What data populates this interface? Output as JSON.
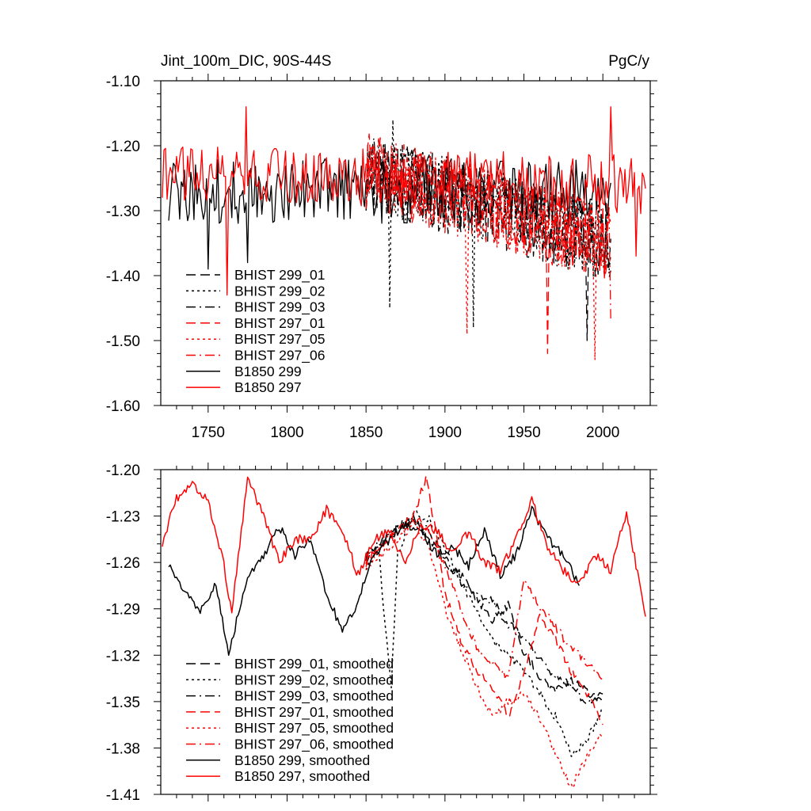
{
  "chart_data": [
    {
      "type": "line",
      "title": "Jint_100m_DIC, 90S-44S",
      "units": "PgC/y",
      "xlabel": "",
      "ylabel": "",
      "xlim": [
        1720,
        2030
      ],
      "ylim": [
        -1.6,
        -1.1
      ],
      "x_ticks": [
        1750,
        1800,
        1850,
        1900,
        1950,
        2000
      ],
      "x_tick_labels": [
        "1750",
        "1800",
        "1850",
        "1900",
        "1950",
        "2000"
      ],
      "y_ticks": [
        -1.6,
        -1.5,
        -1.4,
        -1.3,
        -1.2,
        -1.1
      ],
      "y_tick_labels": [
        "-1.60",
        "-1.50",
        "-1.40",
        "-1.30",
        "-1.20",
        "-1.10"
      ],
      "legend_position": "lower-left",
      "series": [
        {
          "name": "BHIST 299_01",
          "color": "#000000",
          "dash": "dash",
          "x_start": 1850,
          "x_end": 2005,
          "mean_start": -1.24,
          "mean_end": -1.35,
          "amplitude": 0.06,
          "peaks": [
            [
              1990,
              -1.5
            ]
          ]
        },
        {
          "name": "BHIST 299_02",
          "color": "#000000",
          "dash": "dot",
          "x_start": 1850,
          "x_end": 2005,
          "mean_start": -1.24,
          "mean_end": -1.35,
          "amplitude": 0.06,
          "peaks": [
            [
              1865,
              -1.45
            ],
            [
              1918,
              -1.48
            ],
            [
              1867,
              -1.16
            ]
          ]
        },
        {
          "name": "BHIST 299_03",
          "color": "#000000",
          "dash": "dashdot",
          "x_start": 1850,
          "x_end": 2005,
          "mean_start": -1.24,
          "mean_end": -1.35,
          "amplitude": 0.06,
          "peaks": []
        },
        {
          "name": "BHIST 297_01",
          "color": "#ff0000",
          "dash": "dash",
          "x_start": 1850,
          "x_end": 2005,
          "mean_start": -1.24,
          "mean_end": -1.35,
          "amplitude": 0.06,
          "peaks": [
            [
              1965,
              -1.52
            ]
          ]
        },
        {
          "name": "BHIST 297_05",
          "color": "#ff0000",
          "dash": "dot",
          "x_start": 1850,
          "x_end": 2005,
          "mean_start": -1.24,
          "mean_end": -1.35,
          "amplitude": 0.06,
          "peaks": [
            [
              1914,
              -1.49
            ],
            [
              1995,
              -1.53
            ]
          ]
        },
        {
          "name": "BHIST 297_06",
          "color": "#ff0000",
          "dash": "dashdot",
          "x_start": 1850,
          "x_end": 2005,
          "mean_start": -1.24,
          "mean_end": -1.35,
          "amplitude": 0.06,
          "peaks": [
            [
              2005,
              -1.47
            ]
          ]
        },
        {
          "name": "B1850 299",
          "color": "#000000",
          "dash": "solid",
          "x_start": 1725,
          "x_end": 2005,
          "mean_start": -1.27,
          "mean_end": -1.27,
          "amplitude": 0.05,
          "peaks": [
            [
              1750,
              -1.39
            ],
            [
              1775,
              -1.38
            ]
          ]
        },
        {
          "name": "B1850 297",
          "color": "#ff0000",
          "dash": "solid",
          "x_start": 1721,
          "x_end": 2027,
          "mean_start": -1.24,
          "mean_end": -1.26,
          "amplitude": 0.045,
          "peaks": [
            [
              1762,
              -1.43
            ],
            [
              1774,
              -1.14
            ],
            [
              2005,
              -1.14
            ],
            [
              2021,
              -1.37
            ]
          ]
        }
      ]
    },
    {
      "type": "line",
      "title": "",
      "xlabel": "",
      "ylabel": "",
      "xlim": [
        1720,
        2030
      ],
      "ylim": [
        -1.41,
        -1.2
      ],
      "x_ticks": [
        1750,
        1800,
        1850,
        1900,
        1950,
        2000
      ],
      "y_ticks": [
        -1.41,
        -1.38,
        -1.35,
        -1.32,
        -1.29,
        -1.26,
        -1.23,
        -1.2
      ],
      "y_tick_labels": [
        "-1.41",
        "-1.38",
        "-1.35",
        "-1.32",
        "-1.29",
        "-1.26",
        "-1.23",
        "-1.20"
      ],
      "legend_position": "lower-left",
      "series": [
        {
          "name": "BHIST 299_01, smoothed",
          "color": "#000000",
          "dash": "dash",
          "x": [
            1850,
            1860,
            1870,
            1880,
            1890,
            1900,
            1910,
            1920,
            1930,
            1940,
            1950,
            1960,
            1970,
            1980,
            1990,
            2000
          ],
          "values": [
            -1.258,
            -1.247,
            -1.238,
            -1.232,
            -1.244,
            -1.262,
            -1.268,
            -1.283,
            -1.297,
            -1.288,
            -1.318,
            -1.333,
            -1.344,
            -1.335,
            -1.343,
            -1.352
          ]
        },
        {
          "name": "BHIST 299_02, smoothed",
          "color": "#000000",
          "dash": "dot",
          "x": [
            1850,
            1858,
            1862,
            1866,
            1870,
            1880,
            1890,
            1900,
            1910,
            1920,
            1930,
            1940,
            1950,
            1960,
            1970,
            1980,
            1990,
            2000
          ],
          "values": [
            -1.262,
            -1.252,
            -1.3,
            -1.34,
            -1.255,
            -1.226,
            -1.232,
            -1.25,
            -1.272,
            -1.292,
            -1.31,
            -1.32,
            -1.33,
            -1.345,
            -1.36,
            -1.385,
            -1.375,
            -1.355
          ]
        },
        {
          "name": "BHIST 299_03, smoothed",
          "color": "#000000",
          "dash": "dashdot",
          "x": [
            1850,
            1860,
            1870,
            1880,
            1890,
            1900,
            1910,
            1920,
            1930,
            1940,
            1950,
            1960,
            1970,
            1980,
            1990,
            2000
          ],
          "values": [
            -1.256,
            -1.246,
            -1.236,
            -1.232,
            -1.24,
            -1.257,
            -1.272,
            -1.28,
            -1.285,
            -1.3,
            -1.308,
            -1.322,
            -1.334,
            -1.34,
            -1.352,
            -1.345
          ]
        },
        {
          "name": "BHIST 297_01, smoothed",
          "color": "#ff0000",
          "dash": "dash",
          "x": [
            1850,
            1860,
            1870,
            1880,
            1888,
            1895,
            1900,
            1910,
            1920,
            1930,
            1940,
            1950,
            1960,
            1970,
            1980,
            1990,
            2000
          ],
          "values": [
            -1.26,
            -1.25,
            -1.24,
            -1.23,
            -1.205,
            -1.245,
            -1.28,
            -1.31,
            -1.33,
            -1.34,
            -1.36,
            -1.33,
            -1.295,
            -1.31,
            -1.33,
            -1.345,
            -1.365
          ]
        },
        {
          "name": "BHIST 297_05, smoothed",
          "color": "#ff0000",
          "dash": "dot",
          "x": [
            1850,
            1860,
            1870,
            1880,
            1890,
            1900,
            1910,
            1920,
            1930,
            1940,
            1950,
            1960,
            1970,
            1980,
            1990,
            2000
          ],
          "values": [
            -1.262,
            -1.255,
            -1.245,
            -1.235,
            -1.25,
            -1.29,
            -1.315,
            -1.34,
            -1.36,
            -1.35,
            -1.345,
            -1.36,
            -1.385,
            -1.405,
            -1.385,
            -1.37
          ]
        },
        {
          "name": "BHIST 297_06, smoothed",
          "color": "#ff0000",
          "dash": "dashdot",
          "x": [
            1850,
            1860,
            1870,
            1880,
            1890,
            1900,
            1910,
            1920,
            1930,
            1940,
            1950,
            1960,
            1970,
            1980,
            1990,
            2000
          ],
          "values": [
            -1.258,
            -1.248,
            -1.24,
            -1.232,
            -1.238,
            -1.262,
            -1.29,
            -1.315,
            -1.325,
            -1.335,
            -1.27,
            -1.288,
            -1.302,
            -1.315,
            -1.325,
            -1.335
          ]
        },
        {
          "name": "B1850 299, smoothed",
          "color": "#000000",
          "dash": "solid",
          "x": [
            1725,
            1735,
            1745,
            1755,
            1763,
            1775,
            1785,
            1795,
            1805,
            1815,
            1825,
            1835,
            1845,
            1855,
            1865,
            1875,
            1885,
            1895,
            1905,
            1915,
            1925,
            1935,
            1945,
            1955,
            1965,
            1975,
            1985
          ],
          "values": [
            -1.26,
            -1.28,
            -1.29,
            -1.275,
            -1.318,
            -1.27,
            -1.255,
            -1.237,
            -1.255,
            -1.245,
            -1.28,
            -1.305,
            -1.285,
            -1.255,
            -1.245,
            -1.235,
            -1.24,
            -1.255,
            -1.25,
            -1.262,
            -1.24,
            -1.268,
            -1.255,
            -1.225,
            -1.245,
            -1.255,
            -1.275
          ]
        },
        {
          "name": "B1850 297, smoothed",
          "color": "#ff0000",
          "dash": "solid",
          "x": [
            1721,
            1730,
            1740,
            1750,
            1760,
            1765,
            1775,
            1785,
            1795,
            1805,
            1815,
            1825,
            1835,
            1845,
            1855,
            1865,
            1875,
            1885,
            1895,
            1905,
            1915,
            1925,
            1935,
            1945,
            1955,
            1965,
            1975,
            1985,
            1995,
            2005,
            2015,
            2027
          ],
          "values": [
            -1.247,
            -1.218,
            -1.21,
            -1.22,
            -1.262,
            -1.292,
            -1.205,
            -1.23,
            -1.26,
            -1.245,
            -1.245,
            -1.226,
            -1.24,
            -1.268,
            -1.245,
            -1.24,
            -1.26,
            -1.235,
            -1.24,
            -1.255,
            -1.24,
            -1.26,
            -1.265,
            -1.245,
            -1.22,
            -1.25,
            -1.265,
            -1.275,
            -1.255,
            -1.265,
            -1.228,
            -1.295
          ]
        }
      ]
    }
  ]
}
